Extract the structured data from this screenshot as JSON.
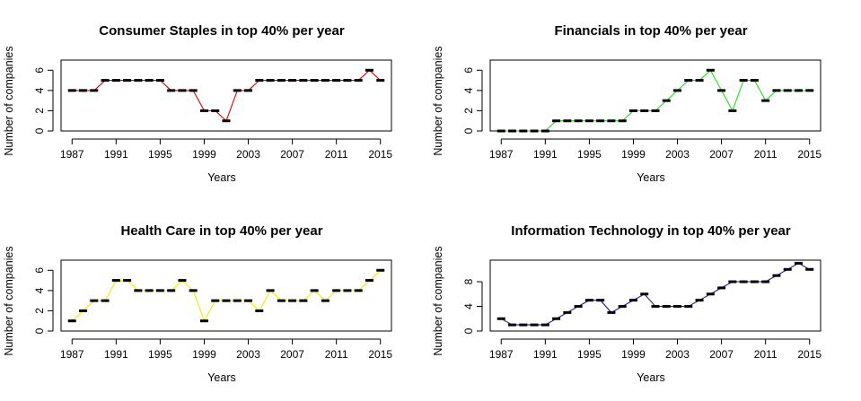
{
  "chart_data": [
    {
      "type": "line",
      "title": "Consumer Staples in top 40% per year",
      "xlabel": "Years",
      "ylabel": "Number of companies",
      "color": "#dd0000",
      "xlim": [
        1986,
        2016
      ],
      "ylim": [
        0,
        7
      ],
      "xticks": [
        1987,
        1991,
        1995,
        1999,
        2003,
        2007,
        2011,
        2015
      ],
      "yticks": [
        0,
        2,
        4,
        6
      ],
      "x": [
        1987,
        1988,
        1989,
        1990,
        1991,
        1992,
        1993,
        1994,
        1995,
        1996,
        1997,
        1998,
        1999,
        2000,
        2001,
        2002,
        2003,
        2004,
        2005,
        2006,
        2007,
        2008,
        2009,
        2010,
        2011,
        2012,
        2013,
        2014,
        2015
      ],
      "values": [
        4,
        4,
        4,
        5,
        5,
        5,
        5,
        5,
        5,
        4,
        4,
        4,
        2,
        2,
        1,
        4,
        4,
        5,
        5,
        5,
        5,
        5,
        5,
        5,
        5,
        5,
        5,
        6,
        5
      ]
    },
    {
      "type": "line",
      "title": "Financials in top 40% per year",
      "xlabel": "Years",
      "ylabel": "Number of companies",
      "color": "#22dd22",
      "xlim": [
        1986,
        2016
      ],
      "ylim": [
        0,
        7
      ],
      "xticks": [
        1987,
        1991,
        1995,
        1999,
        2003,
        2007,
        2011,
        2015
      ],
      "yticks": [
        0,
        2,
        4,
        6
      ],
      "x": [
        1987,
        1988,
        1989,
        1990,
        1991,
        1992,
        1993,
        1994,
        1995,
        1996,
        1997,
        1998,
        1999,
        2000,
        2001,
        2002,
        2003,
        2004,
        2005,
        2006,
        2007,
        2008,
        2009,
        2010,
        2011,
        2012,
        2013,
        2014,
        2015
      ],
      "values": [
        0,
        0,
        0,
        0,
        0,
        1,
        1,
        1,
        1,
        1,
        1,
        1,
        2,
        2,
        2,
        3,
        4,
        5,
        5,
        6,
        4,
        2,
        5,
        5,
        3,
        4,
        4,
        4,
        4
      ]
    },
    {
      "type": "line",
      "title": "Health Care in top 40% per year",
      "xlabel": "Years",
      "ylabel": "Number of companies",
      "color": "#eeee00",
      "xlim": [
        1986,
        2016
      ],
      "ylim": [
        0,
        7
      ],
      "xticks": [
        1987,
        1991,
        1995,
        1999,
        2003,
        2007,
        2011,
        2015
      ],
      "yticks": [
        0,
        2,
        4,
        6
      ],
      "x": [
        1987,
        1988,
        1989,
        1990,
        1991,
        1992,
        1993,
        1994,
        1995,
        1996,
        1997,
        1998,
        1999,
        2000,
        2001,
        2002,
        2003,
        2004,
        2005,
        2006,
        2007,
        2008,
        2009,
        2010,
        2011,
        2012,
        2013,
        2014,
        2015
      ],
      "values": [
        1,
        2,
        3,
        3,
        5,
        5,
        4,
        4,
        4,
        4,
        5,
        4,
        1,
        3,
        3,
        3,
        3,
        2,
        4,
        3,
        3,
        3,
        4,
        3,
        4,
        4,
        4,
        5,
        6
      ]
    },
    {
      "type": "line",
      "title": "Information Technology in top 40% per year",
      "xlabel": "Years",
      "ylabel": "Number of companies",
      "color": "#1a1aa0",
      "xlim": [
        1986,
        2016
      ],
      "ylim": [
        0,
        11.5
      ],
      "xticks": [
        1987,
        1991,
        1995,
        1999,
        2003,
        2007,
        2011,
        2015
      ],
      "yticks": [
        0,
        4,
        8
      ],
      "x": [
        1987,
        1988,
        1989,
        1990,
        1991,
        1992,
        1993,
        1994,
        1995,
        1996,
        1997,
        1998,
        1999,
        2000,
        2001,
        2002,
        2003,
        2004,
        2005,
        2006,
        2007,
        2008,
        2009,
        2010,
        2011,
        2012,
        2013,
        2014,
        2015
      ],
      "values": [
        2,
        1,
        1,
        1,
        1,
        2,
        3,
        4,
        5,
        5,
        3,
        4,
        5,
        6,
        4,
        4,
        4,
        4,
        5,
        6,
        7,
        8,
        8,
        8,
        8,
        9,
        10,
        11,
        10
      ]
    }
  ]
}
